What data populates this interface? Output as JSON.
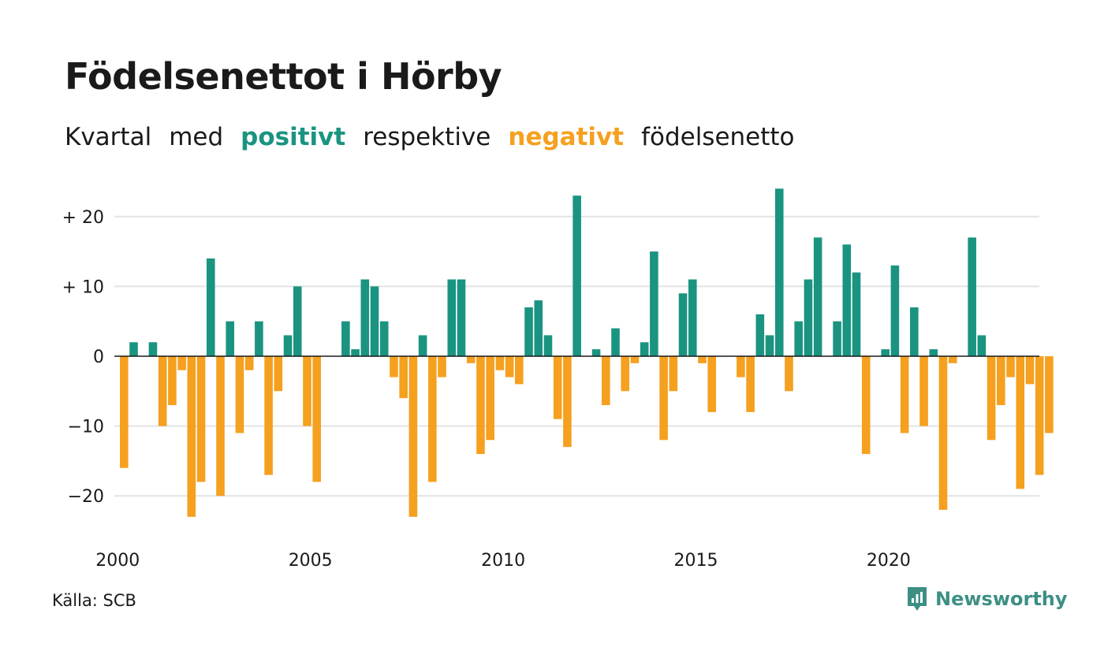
{
  "title": "Födelsenettot i Hörby",
  "subtitle": {
    "part1": "Kvartal",
    "part2": "med",
    "positive_word": "positivt",
    "part3": "respektive",
    "negative_word": "negativt",
    "part4": "födelsenetto"
  },
  "source": "Källa: SCB",
  "brand": {
    "name": "Newsworthy",
    "icon": "newsworthy-logo-icon"
  },
  "colors": {
    "positive": "#1a9481",
    "negative": "#f5a01f",
    "grid": "#e3e3e3",
    "brand": "#3d8f84"
  },
  "chart_data": {
    "type": "bar",
    "x_unit": "quarter",
    "x_start": "2000 Q1",
    "x_tick_labels": [
      "2000",
      "2005",
      "2010",
      "2015",
      "2020"
    ],
    "y_tick_labels": [
      "+ 20",
      "+ 10",
      "0",
      "−10",
      "−20"
    ],
    "y_ticks": [
      20,
      10,
      0,
      -10,
      -20
    ],
    "ylim": [
      -26,
      25
    ],
    "grid": true,
    "values": [
      -16,
      2,
      0,
      2,
      -10,
      -7,
      -2,
      -23,
      -18,
      14,
      -20,
      5,
      -11,
      -2,
      5,
      -17,
      -5,
      3,
      10,
      -10,
      -18,
      0,
      0,
      5,
      1,
      11,
      10,
      5,
      -3,
      -6,
      -23,
      3,
      -18,
      -3,
      11,
      11,
      -1,
      -14,
      -12,
      -2,
      -3,
      -4,
      7,
      8,
      3,
      -9,
      -13,
      23,
      0,
      1,
      -7,
      4,
      -5,
      -1,
      2,
      15,
      -12,
      -5,
      9,
      11,
      -1,
      -8,
      0,
      0,
      -3,
      -8,
      6,
      3,
      24,
      -5,
      5,
      11,
      17,
      0,
      5,
      16,
      12,
      -14,
      0,
      1,
      13,
      -11,
      7,
      -10,
      1,
      -22,
      -1,
      0,
      17,
      3,
      -12,
      -7,
      -3,
      -19,
      -4,
      -17,
      -11
    ]
  }
}
